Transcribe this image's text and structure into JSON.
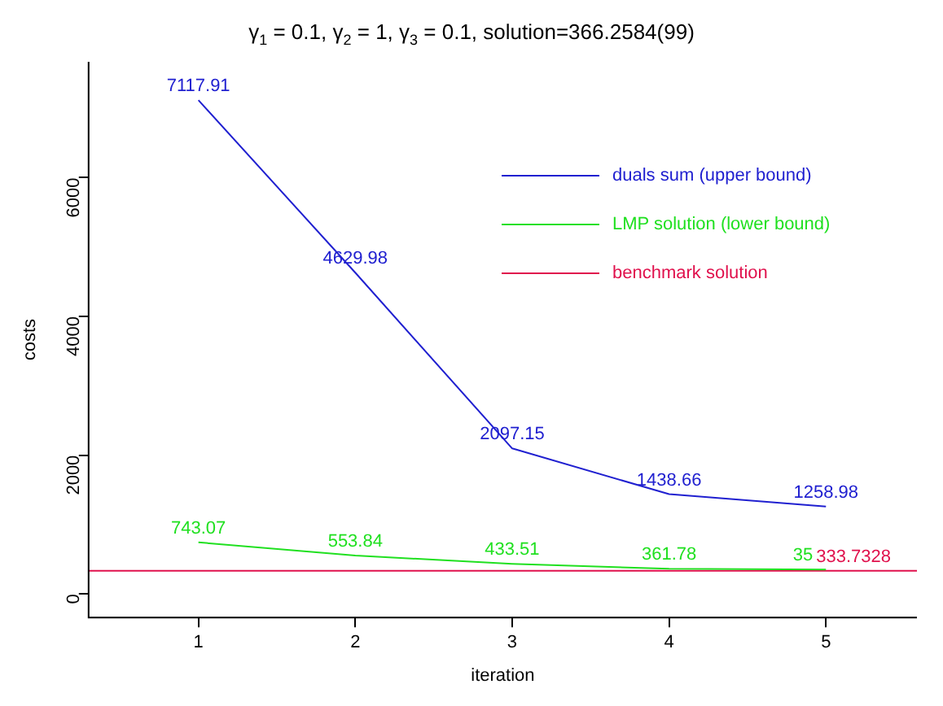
{
  "chart_data": {
    "type": "line",
    "title": "γ$_{1}$ = 0.1, γ$_{2}$ = 1, γ$_{3}$ = 0.1, solution=366.2584(99)",
    "xlabel": "iteration",
    "ylabel": "costs",
    "x": [
      1,
      2,
      3,
      4,
      5
    ],
    "series": [
      {
        "name": "duals sum (upper bound)",
        "color": "#2020d0",
        "values": [
          7117.91,
          4629.98,
          2097.15,
          1438.66,
          1258.98
        ],
        "value_labels": [
          "7117.91",
          "4629.98",
          "2097.15",
          "1438.66",
          "1258.98"
        ]
      },
      {
        "name": "LMP solution (lower bound)",
        "color": "#20e020",
        "values": [
          743.07,
          553.84,
          433.51,
          361.78,
          350
        ],
        "value_labels": [
          "743.07",
          "553.84",
          "433.51",
          "361.78",
          null
        ]
      },
      {
        "name": "benchmark solution",
        "color": "#e0104c",
        "x": [
          0.3,
          5.58
        ],
        "values": [
          333.7328,
          333.7328
        ]
      }
    ],
    "annotations": [
      {
        "text": "35",
        "x": 5,
        "y": 350
      },
      {
        "text": "333.7328",
        "x": 5,
        "y": 333.7328
      }
    ],
    "xlim": [
      0.3,
      5.58
    ],
    "ylim": [
      -340,
      7670
    ],
    "xticks": [
      1,
      2,
      3,
      4,
      5
    ],
    "yticks": [
      0,
      2000,
      4000,
      6000
    ],
    "grid": false,
    "legend": "top right",
    "marker": "none",
    "line_style": "solid"
  }
}
